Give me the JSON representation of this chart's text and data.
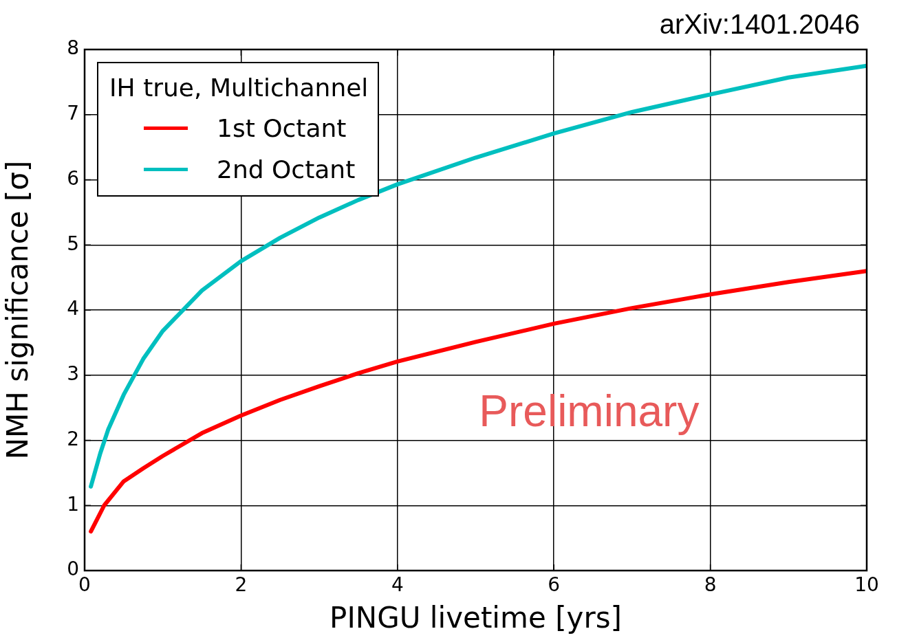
{
  "chart_data": {
    "type": "line",
    "xlabel": "PINGU livetime [yrs]",
    "ylabel": "NMH significance [σ]",
    "legend_title": "IH true, Multichannel",
    "xlim": [
      0,
      10
    ],
    "ylim": [
      0,
      8
    ],
    "xticks": [
      0,
      2,
      4,
      6,
      8,
      10
    ],
    "yticks": [
      0,
      1,
      2,
      3,
      4,
      5,
      6,
      7,
      8
    ],
    "grid": true,
    "legend": "top left",
    "marker": "none",
    "line_style": "solid",
    "annotations": [
      "arXiv:1401.2046",
      "Preliminary"
    ],
    "series": [
      {
        "name": "1st Octant",
        "color": "#ff0000",
        "x": [
          0.08,
          0.25,
          0.5,
          0.75,
          1,
          1.5,
          2,
          2.5,
          3,
          3.5,
          4,
          5,
          6,
          7,
          8,
          9,
          10
        ],
        "values": [
          0.6,
          1.0,
          1.37,
          1.57,
          1.76,
          2.11,
          2.38,
          2.62,
          2.83,
          3.03,
          3.21,
          3.51,
          3.79,
          4.03,
          4.24,
          4.43,
          4.6
        ]
      },
      {
        "name": "2nd Octant",
        "color": "#00bfbf",
        "x": [
          0.08,
          0.2,
          0.3,
          0.5,
          0.75,
          1,
          1.5,
          2,
          2.5,
          3,
          3.5,
          4,
          5,
          6,
          7,
          8,
          9,
          10
        ],
        "values": [
          1.29,
          1.8,
          2.16,
          2.7,
          3.25,
          3.68,
          4.3,
          4.75,
          5.11,
          5.42,
          5.69,
          5.93,
          6.34,
          6.71,
          7.04,
          7.31,
          7.57,
          7.75
        ]
      }
    ]
  }
}
